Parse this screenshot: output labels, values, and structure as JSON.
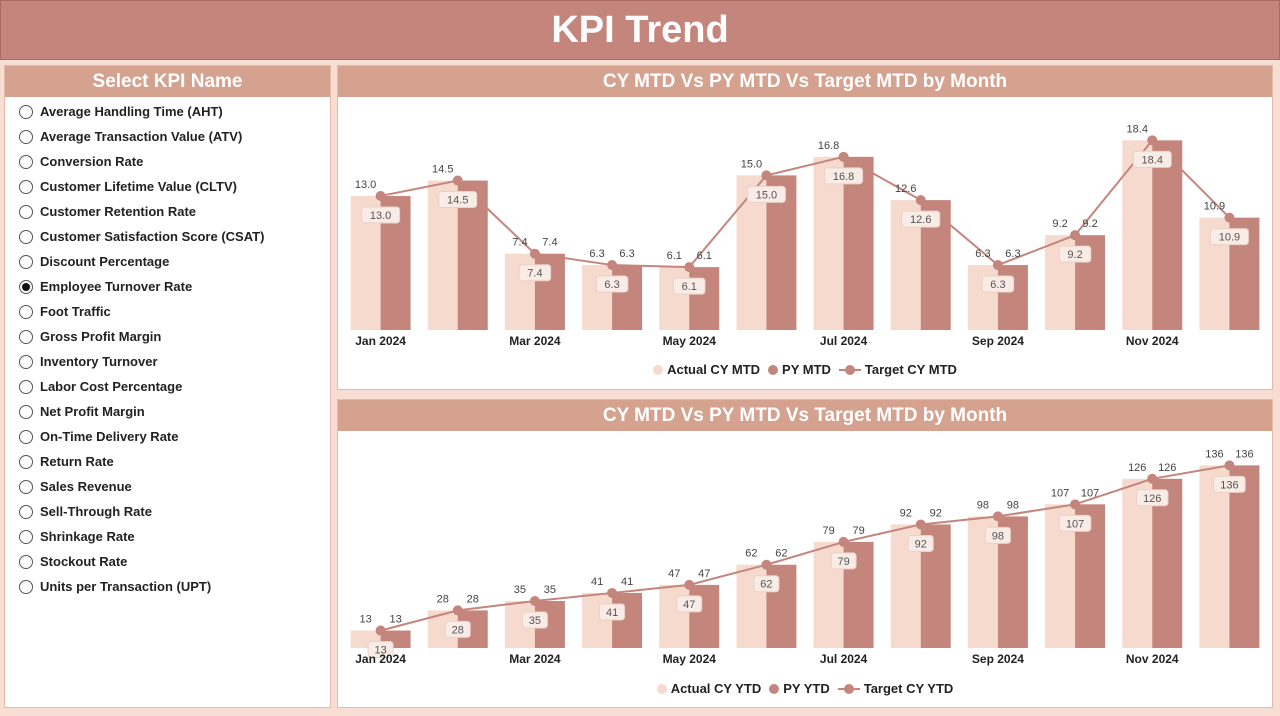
{
  "header": {
    "title": "KPI Trend"
  },
  "colors": {
    "header_bg": "#c4857c",
    "panel_title_bg": "#d4a28f",
    "actual": "#f6dacd",
    "py": "#c4857c",
    "target": "#c4857c"
  },
  "slicer": {
    "title": "Select KPI Name",
    "selected_index": 7,
    "items": [
      "Average Handling Time (AHT)",
      "Average Transaction Value (ATV)",
      "Conversion Rate",
      "Customer Lifetime Value (CLTV)",
      "Customer Retention Rate",
      "Customer Satisfaction Score (CSAT)",
      "Discount Percentage",
      "Employee Turnover Rate",
      "Foot Traffic",
      "Gross Profit Margin",
      "Inventory Turnover",
      "Labor Cost Percentage",
      "Net Profit Margin",
      "On-Time Delivery Rate",
      "Return Rate",
      "Sales Revenue",
      "Sell-Through Rate",
      "Shrinkage Rate",
      "Stockout Rate",
      "Units per Transaction (UPT)"
    ]
  },
  "chart_data": [
    {
      "type": "bar",
      "title": "CY MTD Vs PY MTD Vs Target MTD by Month",
      "categories": [
        "Jan 2024",
        "Feb 2024",
        "Mar 2024",
        "Apr 2024",
        "May 2024",
        "Jun 2024",
        "Jul 2024",
        "Aug 2024",
        "Sep 2024",
        "Oct 2024",
        "Nov 2024",
        "Dec 2024"
      ],
      "tick_labels": [
        "Jan 2024",
        "",
        "Mar 2024",
        "",
        "May 2024",
        "",
        "Jul 2024",
        "",
        "Sep 2024",
        "",
        "Nov 2024",
        ""
      ],
      "series": [
        {
          "name": "Actual CY MTD",
          "kind": "bar",
          "values": [
            13.0,
            14.5,
            7.4,
            6.3,
            6.1,
            15.0,
            16.8,
            12.6,
            6.3,
            9.2,
            18.4,
            10.9
          ],
          "labels": [
            "13.0",
            "14.5",
            "7.4",
            "6.3",
            "6.1",
            "15.0",
            "16.8",
            "12.6",
            "6.3",
            "9.2",
            "18.4",
            "10.9"
          ]
        },
        {
          "name": "PY MTD",
          "kind": "bar",
          "values": [
            13.0,
            14.5,
            7.4,
            6.3,
            6.1,
            15.0,
            16.8,
            12.6,
            6.3,
            9.2,
            18.4,
            10.9
          ],
          "labels": [
            "",
            "",
            "7.4",
            "6.3",
            "6.1",
            "",
            "",
            "",
            "6.3",
            "9.2",
            "",
            ""
          ]
        },
        {
          "name": "Target CY MTD",
          "kind": "line",
          "values": [
            13.0,
            14.5,
            7.4,
            6.3,
            6.1,
            15.0,
            16.8,
            12.6,
            6.3,
            9.2,
            18.4,
            10.9
          ],
          "labels": [
            "13.0",
            "14.5",
            "7.4",
            "6.3",
            "6.1",
            "15.0",
            "16.8",
            "12.6",
            "6.3",
            "9.2",
            "18.4",
            "10.9"
          ]
        }
      ],
      "ylim": [
        0,
        19.5
      ],
      "legend_position": "bottom-center"
    },
    {
      "type": "bar",
      "title": "CY MTD Vs PY MTD Vs Target MTD by Month",
      "categories": [
        "Jan 2024",
        "Feb 2024",
        "Mar 2024",
        "Apr 2024",
        "May 2024",
        "Jun 2024",
        "Jul 2024",
        "Aug 2024",
        "Sep 2024",
        "Oct 2024",
        "Nov 2024",
        "Dec 2024"
      ],
      "tick_labels": [
        "Jan 2024",
        "",
        "Mar 2024",
        "",
        "May 2024",
        "",
        "Jul 2024",
        "",
        "Sep 2024",
        "",
        "Nov 2024",
        ""
      ],
      "series": [
        {
          "name": "Actual CY YTD",
          "kind": "bar",
          "values": [
            13,
            28,
            35,
            41,
            47,
            62,
            79,
            92,
            98,
            107,
            126,
            136
          ],
          "labels": [
            "13",
            "28",
            "35",
            "41",
            "47",
            "62",
            "79",
            "92",
            "98",
            "107",
            "126",
            "136"
          ]
        },
        {
          "name": "PY YTD",
          "kind": "bar",
          "values": [
            13,
            28,
            35,
            41,
            47,
            62,
            79,
            92,
            98,
            107,
            126,
            136
          ],
          "labels": [
            "13",
            "28",
            "35",
            "41",
            "47",
            "62",
            "79",
            "92",
            "98",
            "107",
            "126",
            "136"
          ]
        },
        {
          "name": "Target CY YTD",
          "kind": "line",
          "values": [
            13,
            28,
            35,
            41,
            47,
            62,
            79,
            92,
            98,
            107,
            126,
            136
          ],
          "labels": [
            "13",
            "28",
            "35",
            "41",
            "47",
            "62",
            "79",
            "92",
            "98",
            "107",
            "126",
            "136"
          ]
        }
      ],
      "ylim": [
        0,
        140
      ],
      "legend_position": "bottom-center"
    }
  ]
}
